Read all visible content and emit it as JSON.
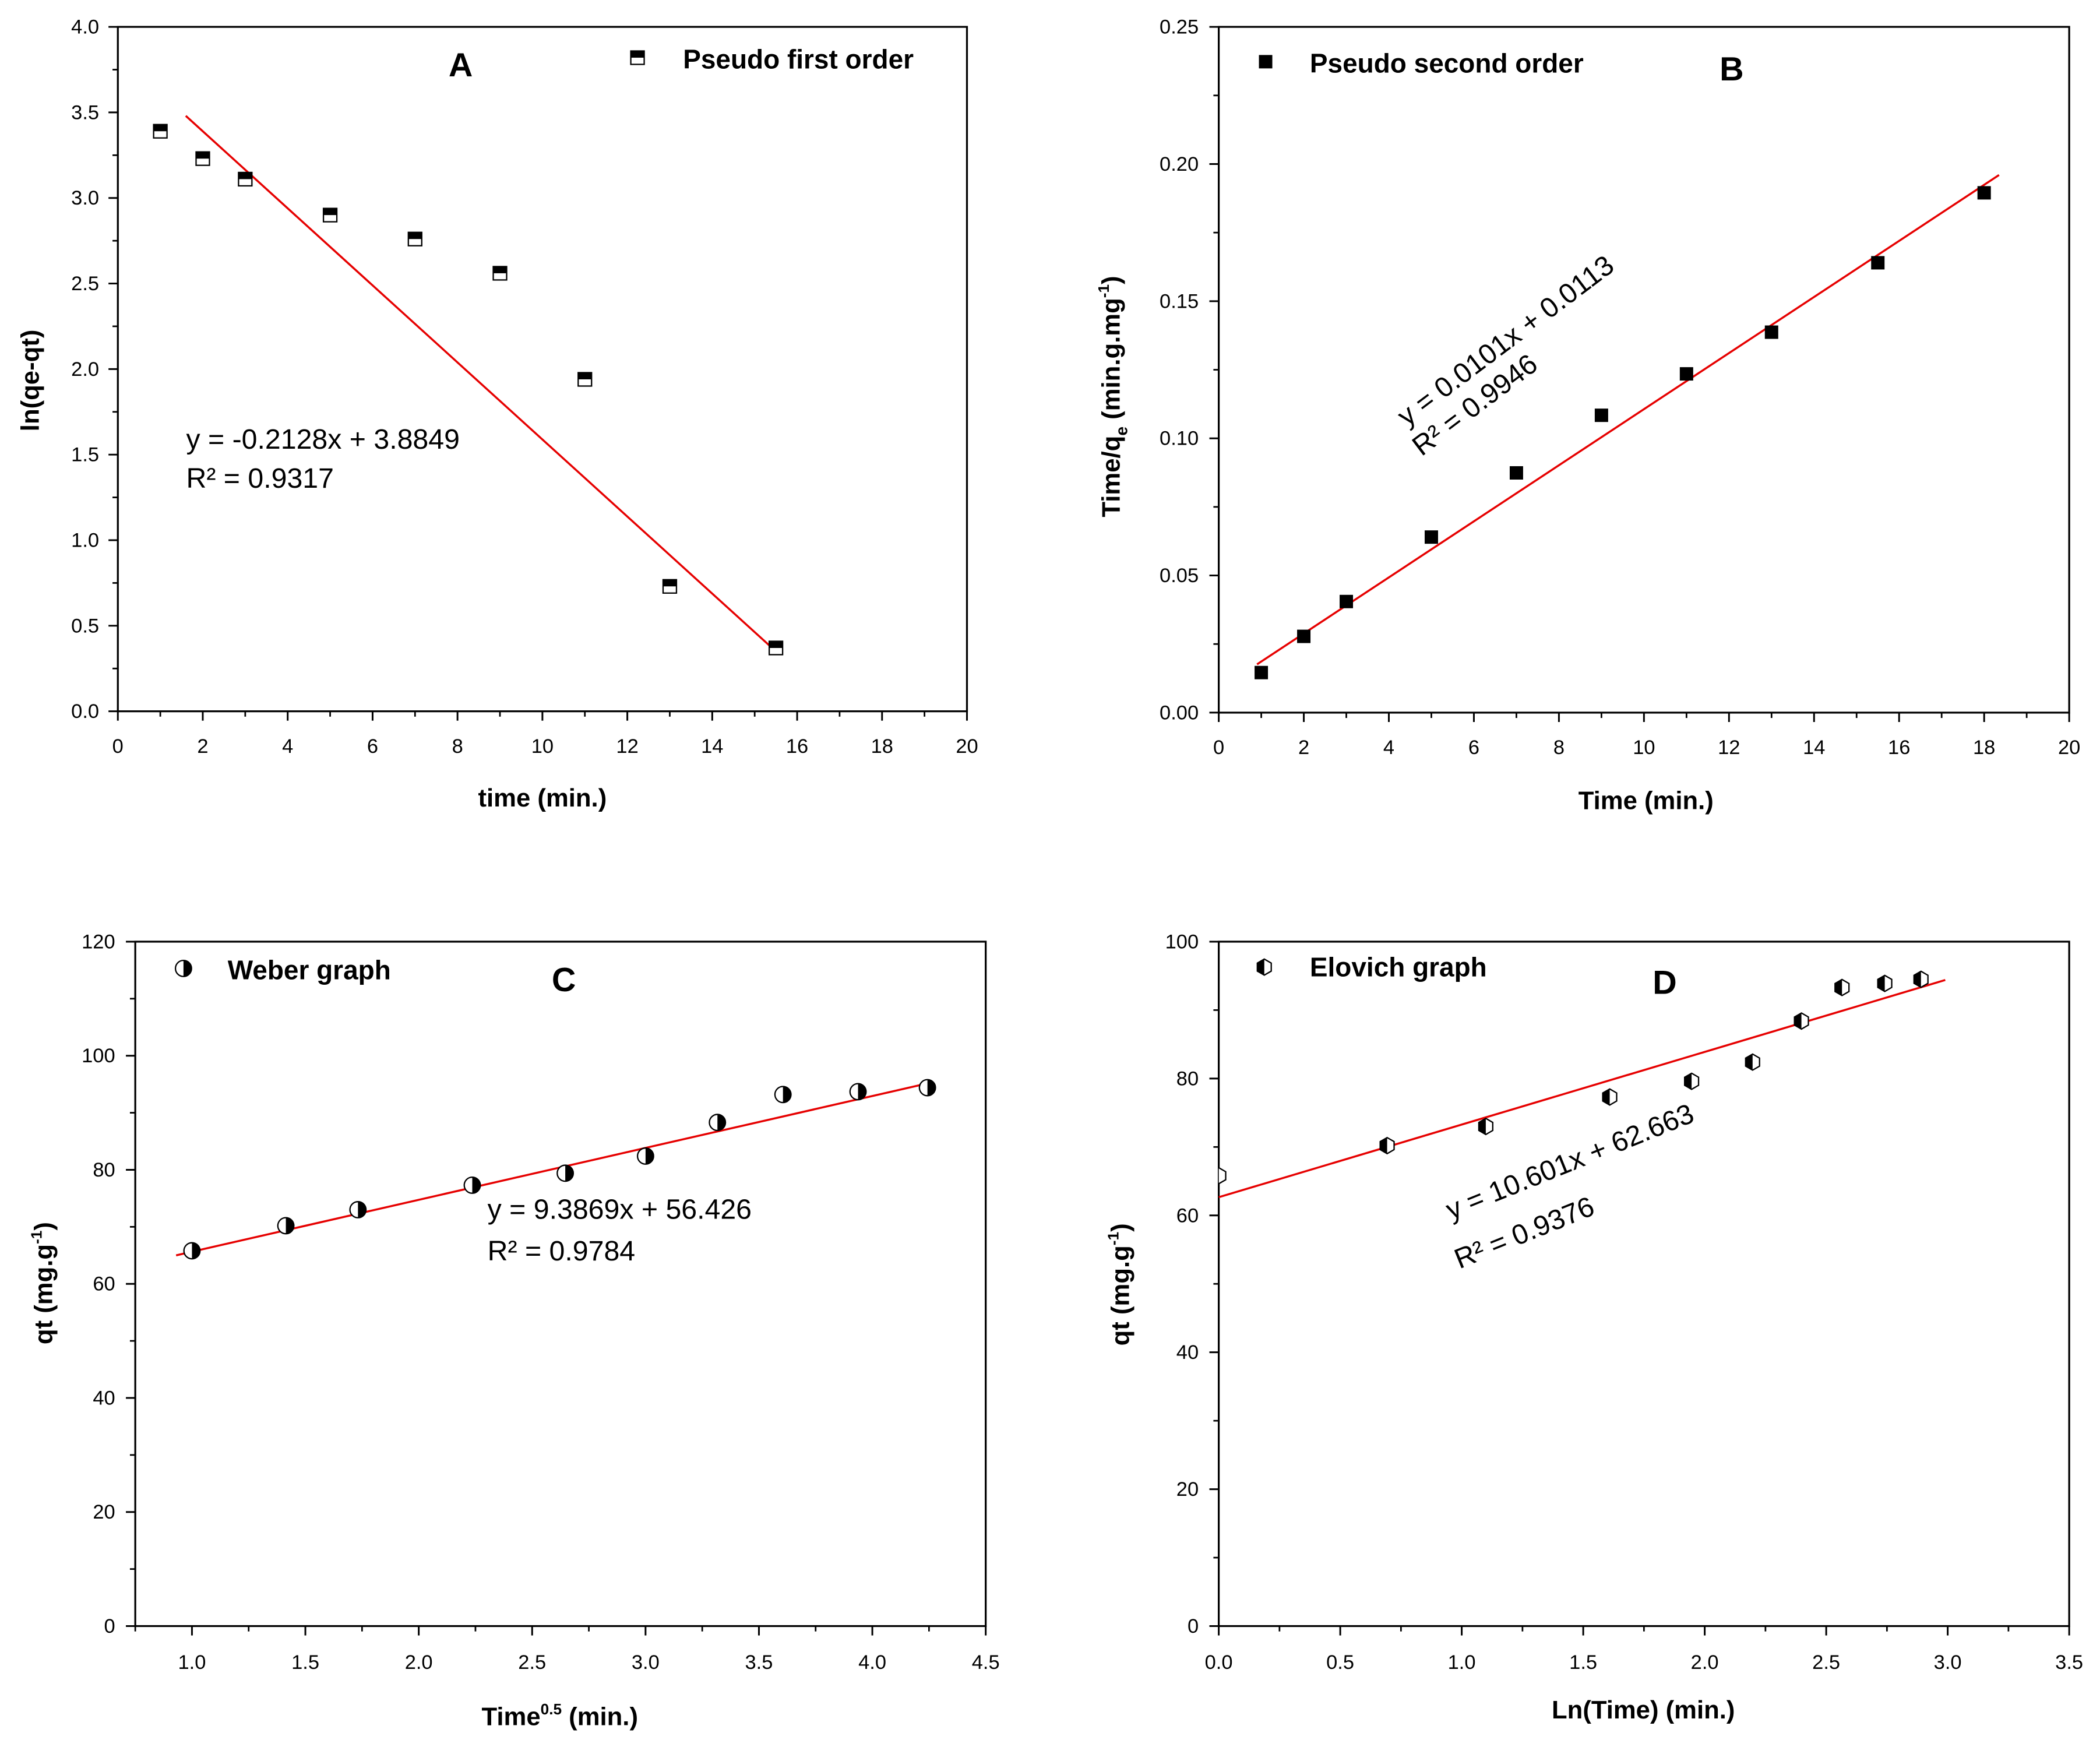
{
  "colors": {
    "fit_line": "#e60000",
    "frame": "#000000",
    "marker_fill": "#000000",
    "marker_empty": "#ffffff",
    "background": "#ffffff"
  },
  "chart_data": [
    {
      "type": "scatter",
      "title": "A",
      "legend": "Pseudo first order",
      "legend_position": "top-right",
      "marker_icon": "half-filled-square-icon",
      "xlabel": [
        "time (min.)"
      ],
      "ylabel": [
        "ln(qe-qt)"
      ],
      "xlim": [
        0,
        20
      ],
      "ylim": [
        0,
        4
      ],
      "xticks": [
        0,
        2,
        4,
        6,
        8,
        10,
        12,
        14,
        16,
        18,
        20
      ],
      "xtick_labels": [
        "0",
        "2",
        "4",
        "6",
        "8",
        "10",
        "12",
        "14",
        "16",
        "18",
        "20"
      ],
      "yticks": [
        0,
        0.5,
        1,
        1.5,
        2,
        2.5,
        3,
        3.5,
        4
      ],
      "ytick_labels": [
        "0.0",
        "0.5",
        "1.0",
        "1.5",
        "2.0",
        "2.5",
        "3.0",
        "3.5",
        "4.0"
      ],
      "x_minor_step": 1,
      "y_minor_step": 0.25,
      "grid": false,
      "x": [
        1,
        2,
        3,
        5,
        7,
        9,
        11,
        13,
        15.5
      ],
      "y": [
        3.39,
        3.23,
        3.11,
        2.9,
        2.76,
        2.56,
        1.94,
        0.73,
        0.37
      ],
      "fit": {
        "x": [
          1.6,
          15.5
        ],
        "y": [
          3.48,
          0.35
        ]
      },
      "equation": "y = -0.2128x + 3.8849",
      "r2": "R² = 0.9317"
    },
    {
      "type": "scatter",
      "title": "B",
      "legend": "Pseudo second order",
      "legend_position": "top-left",
      "marker_icon": "filled-square-icon",
      "xlabel": [
        "Time (min.)"
      ],
      "ylabel": [
        "Time/q",
        "e",
        " (min.g.mg",
        "-1",
        ")"
      ],
      "xlim": [
        0,
        20
      ],
      "ylim": [
        0,
        0.25
      ],
      "xticks": [
        0,
        2,
        4,
        6,
        8,
        10,
        12,
        14,
        16,
        18,
        20
      ],
      "xtick_labels": [
        "0",
        "2",
        "4",
        "6",
        "8",
        "10",
        "12",
        "14",
        "16",
        "18",
        "20"
      ],
      "yticks": [
        0,
        0.05,
        0.1,
        0.15,
        0.2,
        0.25
      ],
      "ytick_labels": [
        "0.00",
        "0.05",
        "0.10",
        "0.15",
        "0.20",
        "0.25"
      ],
      "x_minor_step": 1,
      "y_minor_step": 0.025,
      "grid": false,
      "x": [
        1,
        2,
        3,
        5,
        7,
        9,
        11,
        13,
        15.5,
        18
      ],
      "y": [
        0.0146,
        0.0278,
        0.0405,
        0.064,
        0.0874,
        0.1084,
        0.1235,
        0.1387,
        0.164,
        0.1895
      ],
      "fit": {
        "x": [
          0.9,
          18.35
        ],
        "y": [
          0.0176,
          0.196
        ]
      },
      "equation": "y = 0.0101x + 0.0113",
      "r2": "R² = 0.9946"
    },
    {
      "type": "scatter",
      "title": "C",
      "legend": "Weber graph",
      "legend_position": "top-left",
      "marker_icon": "half-filled-circle-icon",
      "xlabel": [
        "Time",
        "0.5",
        " (min.)"
      ],
      "ylabel": [
        "qt (mg.g",
        "-1",
        ")"
      ],
      "xlim": [
        0.75,
        4.5
      ],
      "ylim": [
        0,
        120
      ],
      "xticks": [
        1,
        1.5,
        2,
        2.5,
        3,
        3.5,
        4,
        4.5
      ],
      "xtick_labels": [
        "1.0",
        "1.5",
        "2.0",
        "2.5",
        "3.0",
        "3.5",
        "4.0",
        "4.5"
      ],
      "yticks": [
        0,
        20,
        40,
        60,
        80,
        100,
        120
      ],
      "ytick_labels": [
        "0",
        "20",
        "40",
        "60",
        "80",
        "100",
        "120"
      ],
      "x_minor_step": 0.25,
      "y_minor_step": 10,
      "grid": false,
      "x": [
        1.0,
        1.414,
        1.732,
        2.236,
        2.646,
        3.0,
        3.317,
        3.606,
        3.937,
        4.243
      ],
      "y": [
        65.8,
        70.2,
        73.0,
        77.3,
        79.4,
        82.4,
        88.3,
        93.2,
        93.7,
        94.4
      ],
      "fit": {
        "x": [
          0.93,
          4.26
        ],
        "y": [
          65.0,
          95.3
        ]
      },
      "equation": "y = 9.3869x + 56.426",
      "r2": "R² = 0.9784"
    },
    {
      "type": "scatter",
      "title": "D",
      "legend": "Elovich graph",
      "legend_position": "top-left",
      "marker_icon": "half-filled-hexagon-icon",
      "xlabel": [
        "Ln(Time) (min.)"
      ],
      "ylabel": [
        "qt (mg.g",
        "-1",
        ")"
      ],
      "xlim": [
        0,
        3.5
      ],
      "ylim": [
        0,
        100
      ],
      "xticks": [
        0,
        0.5,
        1,
        1.5,
        2,
        2.5,
        3,
        3.5
      ],
      "xtick_labels": [
        "0.0",
        "0.5",
        "1.0",
        "1.5",
        "2.0",
        "2.5",
        "3.0",
        "3.5"
      ],
      "yticks": [
        0,
        20,
        40,
        60,
        80,
        100
      ],
      "ytick_labels": [
        "0",
        "20",
        "40",
        "60",
        "80",
        "100"
      ],
      "x_minor_step": 0.25,
      "y_minor_step": 10,
      "grid": false,
      "x": [
        0,
        0.693,
        1.099,
        1.609,
        1.946,
        2.197,
        2.398,
        2.565,
        2.741,
        2.89
      ],
      "y": [
        65.8,
        70.2,
        73.0,
        77.3,
        79.6,
        82.4,
        88.4,
        93.3,
        93.9,
        94.5
      ],
      "fit": {
        "x": [
          0,
          2.99
        ],
        "y": [
          62.66,
          94.4
        ]
      },
      "equation": "y = 10.601x + 62.663",
      "r2": "R² = 0.9376"
    }
  ]
}
